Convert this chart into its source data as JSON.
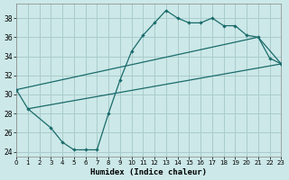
{
  "background_color": "#cce8e8",
  "grid_color": "#aacccc",
  "line_color": "#1a6b6b",
  "xlabel": "Humidex (Indice chaleur)",
  "xlim": [
    0,
    23
  ],
  "ylim": [
    23.5,
    39.5
  ],
  "yticks": [
    24,
    26,
    28,
    30,
    32,
    34,
    36,
    38
  ],
  "xticks": [
    0,
    1,
    2,
    3,
    4,
    5,
    6,
    7,
    8,
    9,
    10,
    11,
    12,
    13,
    14,
    15,
    16,
    17,
    18,
    19,
    20,
    21,
    22,
    23
  ],
  "curve_x": [
    0,
    1,
    3,
    4,
    5,
    6,
    7,
    8,
    9,
    10,
    11,
    12,
    13,
    14,
    15,
    16,
    17,
    18,
    19,
    20,
    21,
    22,
    23
  ],
  "curve_y": [
    30.5,
    28.5,
    26.5,
    25.0,
    24.2,
    24.2,
    24.2,
    28.0,
    31.5,
    34.5,
    36.2,
    37.5,
    38.8,
    38.0,
    37.5,
    37.5,
    38.0,
    37.2,
    37.2,
    36.2,
    36.0,
    33.8,
    33.2
  ],
  "line1_x": [
    0,
    21,
    23
  ],
  "line1_y": [
    30.5,
    36.0,
    33.2
  ],
  "line2_x": [
    1,
    23
  ],
  "line2_y": [
    28.5,
    33.2
  ]
}
